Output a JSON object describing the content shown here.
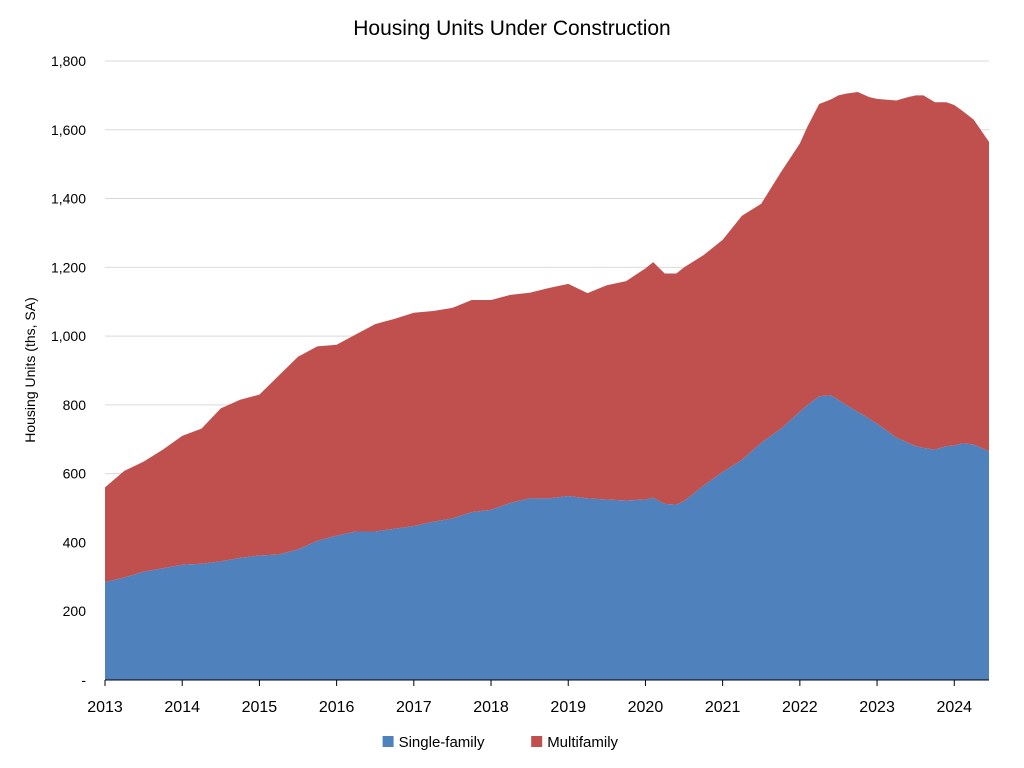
{
  "chart_data": {
    "type": "area",
    "stacked": true,
    "title": "Housing Units Under Construction",
    "ylabel": "Housing Units (ths, SA)",
    "xlabel": "",
    "xlim": [
      2013.0,
      2024.45
    ],
    "ylim": [
      0,
      1800
    ],
    "y_ticks": [
      {
        "value": 0,
        "label": "-"
      },
      {
        "value": 200,
        "label": "200"
      },
      {
        "value": 400,
        "label": "400"
      },
      {
        "value": 600,
        "label": "600"
      },
      {
        "value": 800,
        "label": "800"
      },
      {
        "value": 1000,
        "label": "1,000"
      },
      {
        "value": 1200,
        "label": "1,200"
      },
      {
        "value": 1400,
        "label": "1,400"
      },
      {
        "value": 1600,
        "label": "1,600"
      },
      {
        "value": 1800,
        "label": "1,800"
      }
    ],
    "x_ticks": [
      {
        "value": 2013,
        "label": "2013"
      },
      {
        "value": 2014,
        "label": "2014"
      },
      {
        "value": 2015,
        "label": "2015"
      },
      {
        "value": 2016,
        "label": "2016"
      },
      {
        "value": 2017,
        "label": "2017"
      },
      {
        "value": 2018,
        "label": "2018"
      },
      {
        "value": 2019,
        "label": "2019"
      },
      {
        "value": 2020,
        "label": "2020"
      },
      {
        "value": 2021,
        "label": "2021"
      },
      {
        "value": 2022,
        "label": "2022"
      },
      {
        "value": 2023,
        "label": "2023"
      },
      {
        "value": 2024,
        "label": "2024"
      }
    ],
    "grid": "horizontal",
    "legend_position": "bottom",
    "x": [
      2013.0,
      2013.25,
      2013.5,
      2013.75,
      2014.0,
      2014.25,
      2014.5,
      2014.75,
      2015.0,
      2015.25,
      2015.5,
      2015.75,
      2016.0,
      2016.25,
      2016.5,
      2016.75,
      2017.0,
      2017.25,
      2017.5,
      2017.75,
      2018.0,
      2018.25,
      2018.5,
      2018.75,
      2019.0,
      2019.25,
      2019.5,
      2019.75,
      2020.0,
      2020.1,
      2020.25,
      2020.4,
      2020.5,
      2020.75,
      2021.0,
      2021.25,
      2021.5,
      2021.75,
      2022.0,
      2022.1,
      2022.25,
      2022.4,
      2022.5,
      2022.6,
      2022.75,
      2022.9,
      2023.0,
      2023.25,
      2023.4,
      2023.5,
      2023.6,
      2023.75,
      2023.9,
      2024.0,
      2024.1,
      2024.25,
      2024.45
    ],
    "series": [
      {
        "name": "Single-family",
        "color": "#4f81bd",
        "values": [
          285,
          298,
          315,
          325,
          335,
          338,
          345,
          355,
          362,
          365,
          380,
          405,
          420,
          432,
          432,
          440,
          448,
          460,
          470,
          488,
          495,
          515,
          528,
          528,
          535,
          528,
          525,
          522,
          525,
          530,
          512,
          510,
          520,
          565,
          605,
          640,
          690,
          730,
          780,
          800,
          825,
          828,
          815,
          800,
          780,
          760,
          745,
          705,
          690,
          680,
          675,
          670,
          680,
          682,
          688,
          685,
          665
        ]
      },
      {
        "name": "Multifamily",
        "color": "#c0504d",
        "values": [
          275,
          310,
          320,
          345,
          375,
          393,
          445,
          460,
          468,
          520,
          560,
          565,
          555,
          573,
          603,
          610,
          620,
          613,
          612,
          617,
          610,
          605,
          598,
          612,
          617,
          597,
          623,
          638,
          672,
          685,
          670,
          672,
          680,
          670,
          675,
          710,
          695,
          745,
          780,
          810,
          850,
          860,
          885,
          905,
          930,
          935,
          945,
          980,
          1005,
          1020,
          1025,
          1010,
          1000,
          990,
          968,
          945,
          900
        ]
      }
    ]
  }
}
